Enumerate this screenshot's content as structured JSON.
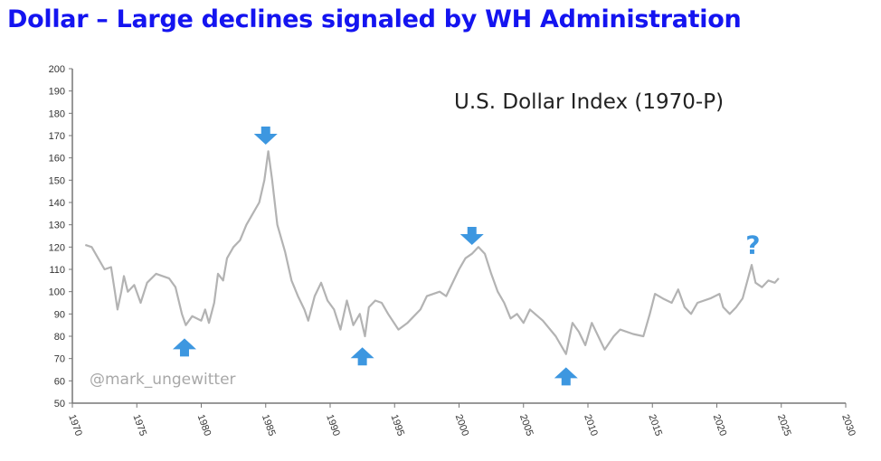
{
  "page_title": "Dollar – Large declines signaled by WH Administration",
  "chart_data": {
    "type": "line",
    "title": "U.S. Dollar Index (1970-P)",
    "watermark": "@mark_ungewitter",
    "xlim": [
      1970,
      2030
    ],
    "ylim": [
      50,
      200
    ],
    "x_ticks": [
      "1970",
      "1975",
      "1980",
      "1985",
      "1990",
      "1995",
      "2000",
      "2005",
      "2010",
      "2015",
      "2020",
      "2025",
      "2030"
    ],
    "y_ticks": [
      "50",
      "60",
      "70",
      "80",
      "90",
      "100",
      "110",
      "120",
      "130",
      "140",
      "150",
      "160",
      "170",
      "180",
      "190",
      "200"
    ],
    "grid": false,
    "line_color": "#b3b3b3",
    "annotation_color": "#3d97e0",
    "series": [
      {
        "x": [
          1971.0,
          1971.5,
          1972,
          1972.5,
          1973,
          1973.3,
          1973.5,
          1973.8,
          1974,
          1974.3,
          1974.8,
          1975.3,
          1975.8,
          1976.5,
          1977.5,
          1978,
          1978.5,
          1978.8,
          1979.3,
          1980,
          1980.3,
          1980.6,
          1981,
          1981.3,
          1981.7,
          1982,
          1982.5,
          1983,
          1983.5,
          1984,
          1984.5,
          1984.9,
          1985.2,
          1985.5,
          1985.9,
          1986.5,
          1987,
          1987.5,
          1988,
          1988.3,
          1988.8,
          1989.3,
          1989.8,
          1990.3,
          1990.8,
          1991.3,
          1991.8,
          1992.3,
          1992.7,
          1993,
          1993.5,
          1994,
          1994.5,
          1995.3,
          1996,
          1997,
          1997.5,
          1998.5,
          1999,
          2000,
          2000.5,
          2001,
          2001.5,
          2002,
          2002.5,
          2003,
          2003.5,
          2004,
          2004.5,
          2005,
          2005.5,
          2006.5,
          2007.5,
          2008.3,
          2008.8,
          2009.3,
          2009.8,
          2010.3,
          2010.8,
          2011.3,
          2012,
          2012.5,
          2013.5,
          2014.3,
          2014.8,
          2015.2,
          2015.8,
          2016.5,
          2017,
          2017.5,
          2018,
          2018.5,
          2019.5,
          2020.2,
          2020.5,
          2021,
          2021.5,
          2022,
          2022.7,
          2023,
          2023.5,
          2024,
          2024.5,
          2024.8
        ],
        "y": [
          121,
          120,
          115,
          110,
          111,
          100,
          92,
          100,
          107,
          100,
          103,
          95,
          104,
          108,
          106,
          102,
          90,
          85,
          89,
          87,
          92,
          86,
          95,
          108,
          105,
          115,
          120,
          123,
          130,
          135,
          140,
          150,
          163,
          150,
          130,
          118,
          105,
          98,
          92,
          87,
          98,
          104,
          96,
          92,
          83,
          96,
          85,
          90,
          80,
          93,
          96,
          95,
          90,
          83,
          86,
          92,
          98,
          100,
          98,
          110,
          115,
          117,
          120,
          117,
          108,
          100,
          95,
          88,
          90,
          86,
          92,
          87,
          80,
          72,
          86,
          82,
          76,
          86,
          80,
          74,
          80,
          83,
          81,
          80,
          90,
          99,
          97,
          95,
          101,
          93,
          90,
          95,
          97,
          99,
          93,
          90,
          93,
          97,
          112,
          104,
          102,
          105,
          104,
          106
        ]
      }
    ],
    "annotations": [
      {
        "type": "down-arrow",
        "x": 1985,
        "y": 170
      },
      {
        "type": "up-arrow",
        "x": 1978.7,
        "y": 75
      },
      {
        "type": "up-arrow",
        "x": 1992.5,
        "y": 71
      },
      {
        "type": "down-arrow",
        "x": 2001,
        "y": 125
      },
      {
        "type": "up-arrow",
        "x": 2008.3,
        "y": 62
      },
      {
        "type": "question-mark",
        "x": 2022.8,
        "y": 117,
        "text": "?"
      }
    ]
  }
}
